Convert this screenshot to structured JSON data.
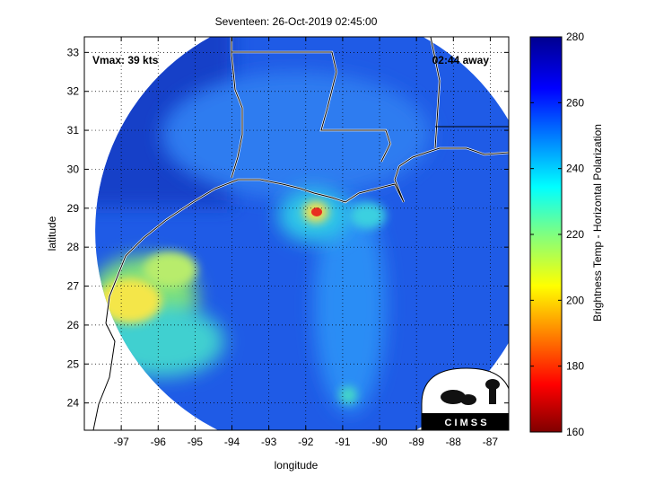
{
  "title": "Seventeen: 26-Oct-2019 02:45:00",
  "vmax_label": "Vmax: 39 kts",
  "time_away": "02:44 away",
  "xlabel": "longitude",
  "ylabel": "latitude",
  "colorbar_label": "Brightness Temp - Horizontal Polarization",
  "logo_text": "C I M S S",
  "chart_data": {
    "type": "heatmap",
    "xlim": [
      -98,
      -86.5
    ],
    "ylim": [
      23.3,
      33.4
    ],
    "x_ticks": [
      -97,
      -96,
      -95,
      -94,
      -93,
      -92,
      -91,
      -90,
      -89,
      -88,
      -87
    ],
    "y_ticks": [
      24,
      25,
      26,
      27,
      28,
      29,
      30,
      31,
      32,
      33
    ],
    "colorbar_ticks": [
      160,
      180,
      200,
      220,
      240,
      260,
      280
    ],
    "colorbar_range": [
      160,
      280
    ],
    "grid": true,
    "colormap": "jet",
    "swath_center": [
      -91.7,
      28.4
    ],
    "hotspots": [
      {
        "lon": -91.7,
        "lat": 29.0,
        "value": 185
      },
      {
        "lon": -96.5,
        "lat": 26.5,
        "value": 205
      },
      {
        "lon": -91.0,
        "lat": 24.3,
        "value": 235
      }
    ]
  }
}
